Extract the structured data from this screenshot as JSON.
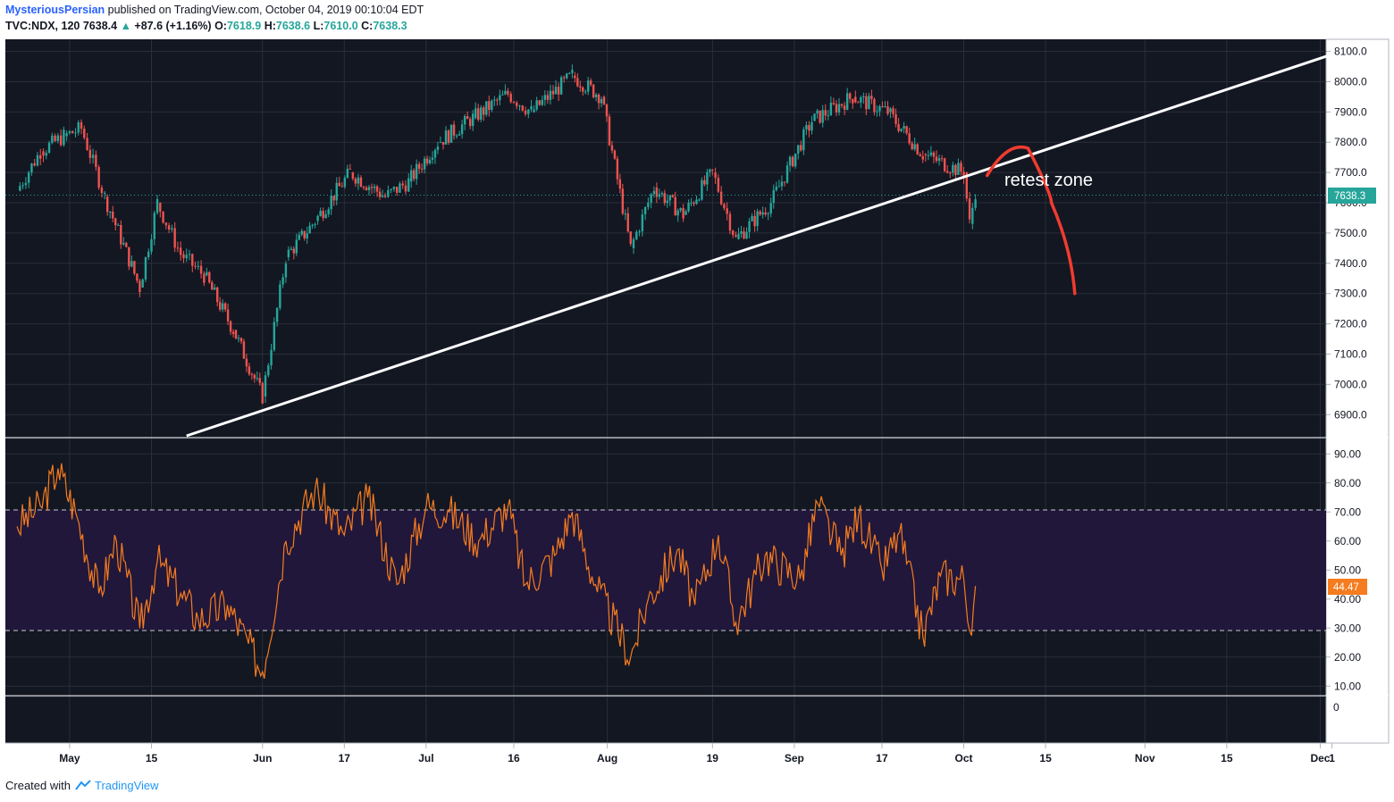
{
  "header": {
    "author": "MysteriousPersian",
    "published": "published on TradingView.com, October 04, 2019 00:10:04 EDT",
    "symbol": "TVC:NDX, 120",
    "last": "7638.4",
    "change_arrow": "▲",
    "change": "+87.6 (+1.16%)",
    "o_label": "O:",
    "o": "7618.9",
    "h_label": "H:",
    "h": "7638.6",
    "l_label": "L:",
    "l": "7610.0",
    "c_label": "C:",
    "c": "7638.3"
  },
  "footer": {
    "created_with": "Created with",
    "brand": "TradingView",
    "logo_icon": "tradingview-cloud-icon"
  },
  "colors": {
    "background": "#131722",
    "up": "#26a69a",
    "down": "#ef5350",
    "trendline": "#ffffff",
    "projection": "#f23b2f",
    "rsi": "#f57c1f",
    "rsi_band": "#21173a",
    "price_tag": "#26a69a",
    "rsi_tag": "#f57c1f"
  },
  "chart_data": [
    {
      "type": "candlestick",
      "symbol": "TVC:NDX",
      "interval": "120",
      "y_axis": {
        "ticks": [
          "6900.0",
          "7000.0",
          "7100.0",
          "7200.0",
          "7300.0",
          "7400.0",
          "7500.0",
          "7600.0",
          "7700.0",
          "7800.0",
          "7900.0",
          "8000.0",
          "8100.0"
        ],
        "ylim": [
          6830,
          8140
        ]
      },
      "x_axis": {
        "ticks": [
          "May",
          "15",
          "Jun",
          "17",
          "Jul",
          "16",
          "Aug",
          "19",
          "Sep",
          "17",
          "Oct",
          "15",
          "Nov",
          "15",
          "Dec",
          "1"
        ]
      },
      "last_price_label": "7638.3",
      "daily_close_path": [
        {
          "date": "2019-04-22",
          "close": 7640
        },
        {
          "date": "2019-04-26",
          "close": 7770
        },
        {
          "date": "2019-04-30",
          "close": 7820
        },
        {
          "date": "2019-05-03",
          "close": 7845
        },
        {
          "date": "2019-05-07",
          "close": 7620
        },
        {
          "date": "2019-05-13",
          "close": 7320
        },
        {
          "date": "2019-05-16",
          "close": 7600
        },
        {
          "date": "2019-05-20",
          "close": 7430
        },
        {
          "date": "2019-05-24",
          "close": 7360
        },
        {
          "date": "2019-05-29",
          "close": 7180
        },
        {
          "date": "2019-06-03",
          "close": 6960
        },
        {
          "date": "2019-06-07",
          "close": 7420
        },
        {
          "date": "2019-06-12",
          "close": 7540
        },
        {
          "date": "2019-06-18",
          "close": 7700
        },
        {
          "date": "2019-06-24",
          "close": 7620
        },
        {
          "date": "2019-06-28",
          "close": 7670
        },
        {
          "date": "2019-07-03",
          "close": 7800
        },
        {
          "date": "2019-07-09",
          "close": 7880
        },
        {
          "date": "2019-07-15",
          "close": 7960
        },
        {
          "date": "2019-07-19",
          "close": 7900
        },
        {
          "date": "2019-07-26",
          "close": 8020
        },
        {
          "date": "2019-07-31",
          "close": 7950
        },
        {
          "date": "2019-08-05",
          "close": 7450
        },
        {
          "date": "2019-08-09",
          "close": 7650
        },
        {
          "date": "2019-08-14",
          "close": 7560
        },
        {
          "date": "2019-08-19",
          "close": 7700
        },
        {
          "date": "2019-08-23",
          "close": 7480
        },
        {
          "date": "2019-08-29",
          "close": 7600
        },
        {
          "date": "2019-09-05",
          "close": 7870
        },
        {
          "date": "2019-09-12",
          "close": 7950
        },
        {
          "date": "2019-09-18",
          "close": 7900
        },
        {
          "date": "2019-09-24",
          "close": 7760
        },
        {
          "date": "2019-10-01",
          "close": 7700
        },
        {
          "date": "2019-10-02",
          "close": 7530
        },
        {
          "date": "2019-10-03",
          "close": 7638
        }
      ],
      "annotations": {
        "trendline": [
          {
            "date": "2019-05-21",
            "price": 6830
          },
          {
            "date": "2019-12-03",
            "price": 8090
          }
        ],
        "projection_label": "retest zone",
        "projection_path": [
          {
            "date": "2019-10-05",
            "price": 7690
          },
          {
            "date": "2019-10-12",
            "price": 7780
          },
          {
            "date": "2019-10-16",
            "price": 7600
          },
          {
            "date": "2019-10-20",
            "price": 7300
          }
        ]
      }
    },
    {
      "type": "line",
      "name": "RSI",
      "y_axis": {
        "ticks": [
          "10.00",
          "20.00",
          "30.00",
          "40.00",
          "50.00",
          "60.00",
          "70.00",
          "80.00",
          "90.00"
        ],
        "ylim": [
          7,
          95
        ]
      },
      "bands": [
        30,
        70
      ],
      "last_value_label": "44.47",
      "series": [
        {
          "date": "2019-04-22",
          "value": 65
        },
        {
          "date": "2019-04-26",
          "value": 72
        },
        {
          "date": "2019-04-29",
          "value": 85
        },
        {
          "date": "2019-05-02",
          "value": 70
        },
        {
          "date": "2019-05-06",
          "value": 42
        },
        {
          "date": "2019-05-09",
          "value": 60
        },
        {
          "date": "2019-05-13",
          "value": 30
        },
        {
          "date": "2019-05-16",
          "value": 53
        },
        {
          "date": "2019-05-20",
          "value": 42
        },
        {
          "date": "2019-05-23",
          "value": 33
        },
        {
          "date": "2019-05-28",
          "value": 38
        },
        {
          "date": "2019-06-03",
          "value": 15
        },
        {
          "date": "2019-06-07",
          "value": 60
        },
        {
          "date": "2019-06-12",
          "value": 78
        },
        {
          "date": "2019-06-17",
          "value": 62
        },
        {
          "date": "2019-06-21",
          "value": 75
        },
        {
          "date": "2019-06-26",
          "value": 45
        },
        {
          "date": "2019-07-01",
          "value": 72
        },
        {
          "date": "2019-07-05",
          "value": 70
        },
        {
          "date": "2019-07-10",
          "value": 60
        },
        {
          "date": "2019-07-15",
          "value": 72
        },
        {
          "date": "2019-07-18",
          "value": 45
        },
        {
          "date": "2019-07-23",
          "value": 55
        },
        {
          "date": "2019-07-26",
          "value": 70
        },
        {
          "date": "2019-07-30",
          "value": 45
        },
        {
          "date": "2019-08-05",
          "value": 20
        },
        {
          "date": "2019-08-08",
          "value": 40
        },
        {
          "date": "2019-08-13",
          "value": 57
        },
        {
          "date": "2019-08-16",
          "value": 38
        },
        {
          "date": "2019-08-20",
          "value": 62
        },
        {
          "date": "2019-08-23",
          "value": 32
        },
        {
          "date": "2019-08-28",
          "value": 55
        },
        {
          "date": "2019-09-03",
          "value": 47
        },
        {
          "date": "2019-09-06",
          "value": 73
        },
        {
          "date": "2019-09-10",
          "value": 55
        },
        {
          "date": "2019-09-13",
          "value": 69
        },
        {
          "date": "2019-09-17",
          "value": 50
        },
        {
          "date": "2019-09-20",
          "value": 63
        },
        {
          "date": "2019-09-24",
          "value": 27
        },
        {
          "date": "2019-09-27",
          "value": 48
        },
        {
          "date": "2019-10-01",
          "value": 47
        },
        {
          "date": "2019-10-02",
          "value": 29
        },
        {
          "date": "2019-10-03",
          "value": 44.47
        }
      ]
    }
  ]
}
